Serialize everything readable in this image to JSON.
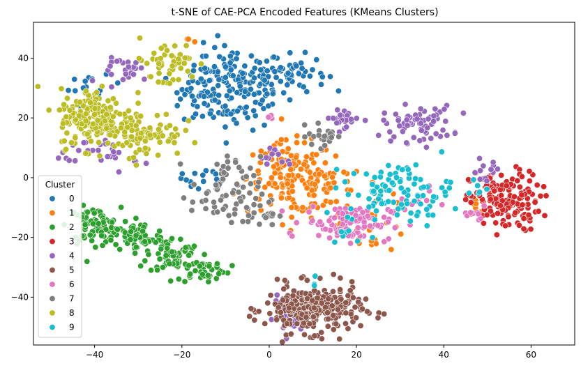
{
  "chart_data": {
    "type": "scatter",
    "title": "t-SNE of CAE-PCA Encoded Features (KMeans Clusters)",
    "xlabel": "",
    "ylabel": "",
    "xlim": [
      -54,
      70
    ],
    "ylim": [
      -56,
      52
    ],
    "xticks": [
      -40,
      -20,
      0,
      20,
      40,
      60
    ],
    "yticks": [
      -40,
      -20,
      0,
      20,
      40
    ],
    "grid": false,
    "legend": {
      "title": "Cluster",
      "placement": "center-left"
    },
    "series": [
      {
        "name": "0",
        "color": "#1f77b4",
        "clusters": [
          {
            "cx": -8,
            "cy": 30,
            "sx": 6,
            "sy": 7,
            "n": 160
          },
          {
            "cx": 5,
            "cy": 35,
            "sx": 4,
            "sy": 3,
            "n": 50
          },
          {
            "cx": -15,
            "cy": 32,
            "sx": 3,
            "sy": 5,
            "n": 40
          },
          {
            "cx": -40,
            "cy": 30,
            "sx": 3,
            "sy": 2,
            "n": 14
          },
          {
            "cx": -16,
            "cy": 0,
            "sx": 4,
            "sy": 3,
            "n": 14
          }
        ]
      },
      {
        "name": "1",
        "color": "#ff7f0e",
        "clusters": [
          {
            "cx": 5,
            "cy": 0,
            "sx": 5,
            "sy": 6,
            "n": 150
          },
          {
            "cx": 14,
            "cy": -5,
            "sx": 4,
            "sy": 5,
            "n": 40
          },
          {
            "cx": 24,
            "cy": -15,
            "sx": 4,
            "sy": 5,
            "n": 25
          },
          {
            "cx": 48,
            "cy": -8,
            "sx": 1,
            "sy": 2,
            "n": 6
          },
          {
            "cx": -19,
            "cy": 45,
            "sx": 1.5,
            "sy": 1,
            "n": 3
          }
        ]
      },
      {
        "name": "2",
        "color": "#2ca02c",
        "clusters": [
          {
            "cx": -40,
            "cy": -16,
            "sx": 3,
            "sy": 3,
            "n": 80
          },
          {
            "cx": -30,
            "cy": -20,
            "sx": 3,
            "sy": 2.5,
            "n": 70
          },
          {
            "cx": -22,
            "cy": -26,
            "sx": 3,
            "sy": 3,
            "n": 60
          },
          {
            "cx": -15,
            "cy": -31,
            "sx": 3,
            "sy": 2,
            "n": 40
          }
        ]
      },
      {
        "name": "3",
        "color": "#d62728",
        "clusters": [
          {
            "cx": 54,
            "cy": -8,
            "sx": 4,
            "sy": 5,
            "n": 160
          }
        ]
      },
      {
        "name": "4",
        "color": "#9467bd",
        "clusters": [
          {
            "cx": 34,
            "cy": 18,
            "sx": 4,
            "sy": 3,
            "n": 70
          },
          {
            "cx": 17,
            "cy": 20,
            "sx": 2,
            "sy": 1.5,
            "n": 25
          },
          {
            "cx": 5,
            "cy": -46,
            "sx": 2,
            "sy": 3,
            "n": 40
          },
          {
            "cx": -32,
            "cy": 36,
            "sx": 3,
            "sy": 2,
            "n": 25
          },
          {
            "cx": -36,
            "cy": 8,
            "sx": 3,
            "sy": 3,
            "n": 20
          },
          {
            "cx": -44,
            "cy": 10,
            "sx": 2,
            "sy": 2,
            "n": 10
          },
          {
            "cx": 49,
            "cy": 2,
            "sx": 2,
            "sy": 2,
            "n": 12
          },
          {
            "cx": 2,
            "cy": 7,
            "sx": 3,
            "sy": 1.5,
            "n": 12
          }
        ]
      },
      {
        "name": "5",
        "color": "#8c564b",
        "clusters": [
          {
            "cx": 10,
            "cy": -44,
            "sx": 5.5,
            "sy": 4,
            "n": 280
          }
        ]
      },
      {
        "name": "6",
        "color": "#e377c2",
        "clusters": [
          {
            "cx": 18,
            "cy": -15,
            "sx": 5,
            "sy": 3,
            "n": 100
          },
          {
            "cx": 47,
            "cy": -12,
            "sx": 2,
            "sy": 2,
            "n": 10
          },
          {
            "cx": 0,
            "cy": 20,
            "sx": 0.6,
            "sy": 0.4,
            "n": 3
          },
          {
            "cx": 34,
            "cy": -7,
            "sx": 2,
            "sy": 2,
            "n": 10
          }
        ]
      },
      {
        "name": "7",
        "color": "#7f7f7f",
        "clusters": [
          {
            "cx": -10,
            "cy": -5,
            "sx": 4,
            "sy": 6,
            "n": 70
          },
          {
            "cx": 13,
            "cy": 14,
            "sx": 2,
            "sy": 2,
            "n": 25
          },
          {
            "cx": -2,
            "cy": -12,
            "sx": 2,
            "sy": 2,
            "n": 18
          }
        ]
      },
      {
        "name": "8",
        "color": "#bcbd22",
        "clusters": [
          {
            "cx": -40,
            "cy": 20,
            "sx": 4,
            "sy": 5,
            "n": 180
          },
          {
            "cx": -28,
            "cy": 15,
            "sx": 4,
            "sy": 4,
            "n": 80
          },
          {
            "cx": -24,
            "cy": 38,
            "sx": 4,
            "sy": 4,
            "n": 50
          }
        ]
      },
      {
        "name": "9",
        "color": "#17becf",
        "clusters": [
          {
            "cx": 30,
            "cy": -5,
            "sx": 6,
            "sy": 5,
            "n": 100
          },
          {
            "cx": 10,
            "cy": -35,
            "sx": 1,
            "sy": 1,
            "n": 3
          },
          {
            "cx": 17,
            "cy": -20,
            "sx": 2,
            "sy": 2,
            "n": 6
          },
          {
            "cx": 48,
            "cy": -3,
            "sx": 1,
            "sy": 2,
            "n": 5
          }
        ]
      }
    ]
  }
}
